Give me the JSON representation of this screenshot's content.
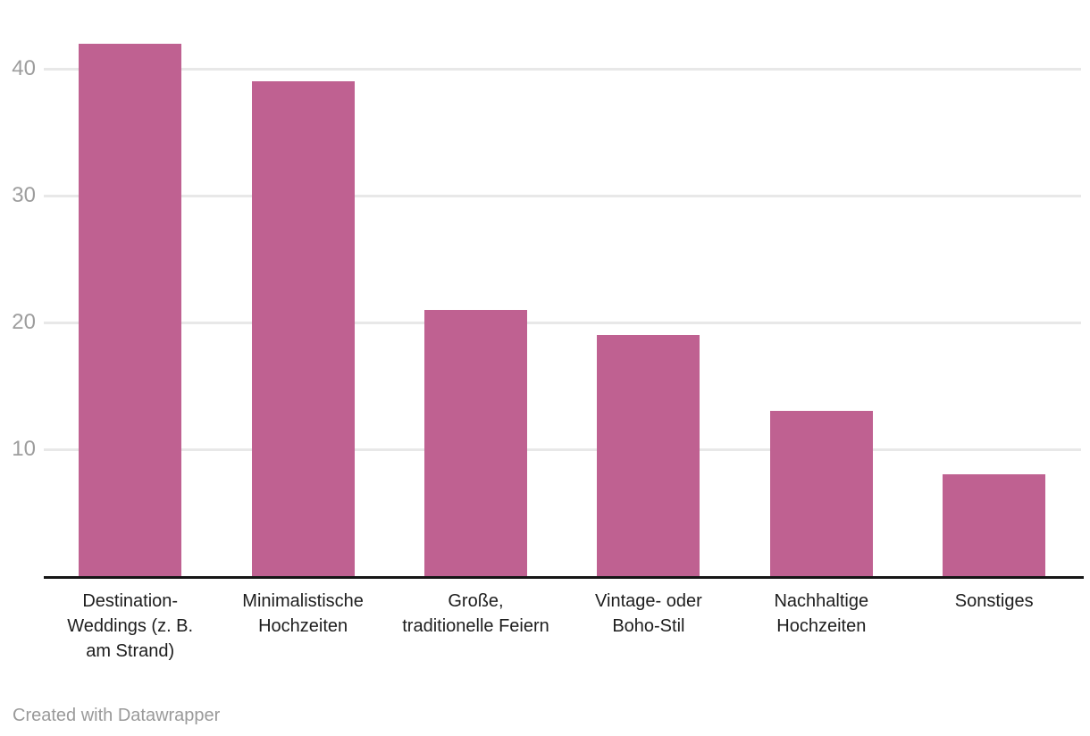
{
  "chart_data": {
    "type": "bar",
    "categories": [
      "Destination-Weddings (z. B. am Strand)",
      "Minimalistische Hochzeiten",
      "Große, traditionelle Feiern",
      "Vintage- oder Boho-Stil",
      "Nachhaltige Hochzeiten",
      "Sonstiges"
    ],
    "values": [
      42,
      39,
      21,
      19,
      13,
      8
    ],
    "title": "",
    "xlabel": "",
    "ylabel": "",
    "ylim": [
      0,
      45.4
    ],
    "yticks": [
      10,
      20,
      30,
      40
    ],
    "grid": true,
    "legend": "none"
  },
  "colors": {
    "bar": "#bf6191",
    "gridline": "#e8e8e8",
    "axis_line": "#161616",
    "tick_label": "#9d9d9d",
    "category_label": "#1d1d1d",
    "footer_text": "#9a9a9a",
    "background": "#ffffff"
  },
  "footer": {
    "credit": "Created with Datawrapper"
  }
}
